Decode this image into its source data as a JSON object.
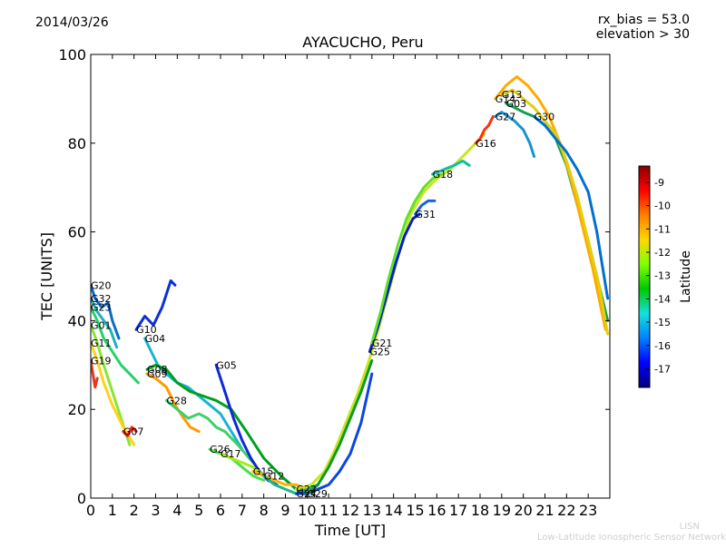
{
  "date": "2014/03/26",
  "rx_bias": "rx_bias = 53.0",
  "elevation": "elevation > 30",
  "watermark": {
    "line1": "LISN",
    "line2": "Low-Latitude Ionospheric Sensor Network"
  },
  "colorbar": {
    "label": "Latitude",
    "ticks": [
      "-9",
      "-10",
      "-11",
      "-12",
      "-13",
      "-14",
      "-15",
      "-16",
      "-17"
    ],
    "range": [
      -17.8,
      -8.3
    ],
    "colors": [
      "#00007f",
      "#0000ff",
      "#0080ff",
      "#15e0e0",
      "#00c800",
      "#7fff00",
      "#ffd700",
      "#ff8000",
      "#ff0000",
      "#8b0000"
    ]
  },
  "chart_data": {
    "type": "line",
    "title": "AYACUCHO, Peru",
    "xlabel": "Time [UT]",
    "ylabel": "TEC [UNITS]",
    "xlim": [
      0,
      24
    ],
    "ylim": [
      0,
      100
    ],
    "xticks": [
      "0",
      "1",
      "2",
      "3",
      "4",
      "5",
      "6",
      "7",
      "8",
      "9",
      "10",
      "11",
      "12",
      "13",
      "14",
      "15",
      "16",
      "17",
      "18",
      "19",
      "20",
      "21",
      "22",
      "23"
    ],
    "yticks": [
      "0",
      "20",
      "40",
      "60",
      "80",
      "100"
    ],
    "series": [
      {
        "name": "G20",
        "color": "#0a6bc9",
        "x": [
          0,
          0.2,
          0.5,
          0.8,
          1.0,
          1.3
        ],
        "y": [
          48,
          45,
          43,
          44,
          40,
          36
        ]
      },
      {
        "name": "G32",
        "color": "#1fb0c0",
        "x": [
          0,
          0.3,
          0.6,
          0.9,
          1.2
        ],
        "y": [
          45,
          42,
          40,
          38,
          34
        ]
      },
      {
        "name": "G23",
        "color": "#23d36a",
        "x": [
          0,
          0.3,
          0.6,
          1.0,
          1.4,
          1.8,
          2.2
        ],
        "y": [
          43,
          40,
          36,
          33,
          30,
          28,
          26
        ]
      },
      {
        "name": "G01",
        "color": "#88e633",
        "x": [
          0,
          0.3,
          0.6,
          1.0,
          1.4,
          1.8
        ],
        "y": [
          39,
          35,
          30,
          24,
          18,
          12
        ]
      },
      {
        "name": "G11",
        "color": "#ffd21a",
        "x": [
          0,
          0.3,
          0.6,
          1.0,
          1.5,
          2.0
        ],
        "y": [
          35,
          31,
          26,
          21,
          16,
          12
        ]
      },
      {
        "name": "G19",
        "color": "#e43820",
        "x": [
          0,
          0.1,
          0.2,
          0.3
        ],
        "y": [
          31,
          28,
          25,
          27
        ]
      },
      {
        "name": "G07",
        "color": "#ff2010",
        "x": [
          1.5,
          1.7,
          1.9,
          2.1
        ],
        "y": [
          15,
          14,
          16,
          15
        ]
      },
      {
        "name": "G04",
        "color": "#18b3d4",
        "x": [
          2.5,
          2.8,
          3.1,
          3.5,
          4.0,
          4.5,
          5.0,
          5.5,
          6.0,
          6.5,
          7.0
        ],
        "y": [
          36,
          33,
          30,
          28,
          26,
          25,
          23,
          21,
          19,
          15,
          11
        ]
      },
      {
        "name": "G10",
        "color": "#0b2fd8",
        "x": [
          2.1,
          2.5,
          2.9,
          3.3,
          3.7,
          3.9
        ],
        "y": [
          38,
          41,
          39,
          43,
          49,
          48
        ]
      },
      {
        "name": "G08",
        "color": "#00a020",
        "x": [
          2.6,
          3.0,
          3.5,
          4.0,
          4.6,
          5.2,
          5.8,
          6.5,
          7.2,
          8.0,
          8.8,
          9.5,
          10.0
        ],
        "y": [
          29,
          30,
          29,
          26,
          24,
          23,
          22,
          20,
          15,
          9,
          5,
          2,
          1
        ]
      },
      {
        "name": "G09",
        "color": "#ff9a00",
        "x": [
          2.6,
          3.0,
          3.5,
          3.9,
          4.3,
          4.6,
          5.0
        ],
        "y": [
          28,
          27,
          25,
          21,
          18,
          16,
          15
        ]
      },
      {
        "name": "G28",
        "color": "#3fcf6a",
        "x": [
          3.5,
          4.0,
          4.5,
          5.0,
          5.4,
          5.8,
          6.2,
          6.8,
          7.5
        ],
        "y": [
          22,
          20,
          18,
          19,
          18,
          16,
          15,
          12,
          8
        ]
      },
      {
        "name": "G05",
        "color": "#0d2ad6",
        "x": [
          5.8,
          6.2,
          6.6,
          7.0,
          7.4,
          7.8,
          8.2,
          8.6
        ],
        "y": [
          30,
          24,
          18,
          13,
          9,
          6,
          4,
          3
        ]
      },
      {
        "name": "G26",
        "color": "#4ae04a",
        "x": [
          5.5,
          6.0,
          6.5,
          7.0,
          7.5,
          8.0
        ],
        "y": [
          11,
          10,
          9,
          7,
          5,
          4
        ]
      },
      {
        "name": "G17",
        "color": "#a6ea1a",
        "x": [
          6.0,
          6.5,
          7.0,
          7.5,
          8.0,
          8.5
        ],
        "y": [
          10,
          9,
          8,
          7,
          5,
          4
        ]
      },
      {
        "name": "G15",
        "color": "#ffb000",
        "x": [
          7.5,
          8.0,
          8.5,
          9.0,
          9.5,
          10.0
        ],
        "y": [
          6,
          5,
          4,
          3,
          3,
          2
        ]
      },
      {
        "name": "G12",
        "color": "#1bb88a",
        "x": [
          8.0,
          8.5,
          9.0,
          9.5,
          10.0,
          10.5
        ],
        "y": [
          5,
          3,
          2,
          1,
          2,
          3
        ]
      },
      {
        "name": "G24",
        "color": "#0a46e0",
        "x": [
          9.5,
          10.0,
          10.5,
          11.0,
          11.5,
          12.0,
          12.5,
          13.0
        ],
        "y": [
          1,
          1,
          2,
          3,
          6,
          10,
          17,
          28
        ]
      },
      {
        "name": "G22",
        "color": "#c8e61f",
        "x": [
          9.5,
          10.2,
          10.8,
          11.3,
          11.8,
          12.3,
          12.8,
          13.3,
          13.8,
          14.3,
          14.8,
          15.4,
          16.0,
          16.6,
          17.2,
          17.8,
          18.2
        ],
        "y": [
          2,
          3,
          6,
          11,
          17,
          23,
          30,
          38,
          47,
          56,
          64,
          69,
          72,
          74,
          77,
          80,
          82
        ]
      },
      {
        "name": "G29",
        "color": "#0c9a28",
        "x": [
          10.0,
          10.5,
          11.0,
          11.5,
          12.0,
          12.5,
          13.0
        ],
        "y": [
          1,
          3,
          7,
          12,
          18,
          24,
          31
        ]
      },
      {
        "name": "G25",
        "color": "#0520c8",
        "x": [
          12.9,
          13.3,
          13.7,
          14.1,
          14.5,
          14.9,
          15.2
        ],
        "y": [
          33,
          39,
          46,
          53,
          59,
          63,
          64
        ]
      },
      {
        "name": "G21",
        "color": "#5fe02a",
        "x": [
          13.0,
          13.4,
          13.8,
          14.2,
          14.6,
          15.0,
          15.4,
          15.8,
          16.2
        ],
        "y": [
          35,
          42,
          50,
          57,
          63,
          67,
          70,
          72,
          73
        ]
      },
      {
        "name": "G31",
        "color": "#1a60e0",
        "x": [
          15.0,
          15.3,
          15.6,
          15.9
        ],
        "y": [
          64,
          66,
          67,
          67
        ]
      },
      {
        "name": "G18",
        "color": "#0fc0a0",
        "x": [
          15.8,
          16.3,
          16.8,
          17.2,
          17.5
        ],
        "y": [
          73,
          74,
          75,
          76,
          75
        ]
      },
      {
        "name": "G16",
        "color": "#ff3010",
        "x": [
          17.8,
          18.0,
          18.2,
          18.4,
          18.6
        ],
        "y": [
          80,
          81,
          83,
          84,
          86
        ]
      },
      {
        "name": "G27",
        "color": "#1496d0",
        "x": [
          18.7,
          19.0,
          19.3,
          19.6,
          20.0,
          20.3,
          20.5
        ],
        "y": [
          86,
          87,
          86,
          85,
          83,
          80,
          77
        ]
      },
      {
        "name": "G03",
        "color": "#12a050",
        "x": [
          19.2,
          19.6,
          20.0,
          20.5,
          21.0,
          21.5,
          22.0,
          22.5,
          23.0,
          23.5,
          23.9
        ],
        "y": [
          89,
          88,
          87,
          86,
          84,
          81,
          75,
          66,
          58,
          48,
          40
        ]
      },
      {
        "name": "G14",
        "color": "#ffaa00",
        "x": [
          18.7,
          19.2,
          19.7,
          20.2,
          20.7,
          21.2,
          21.7,
          22.2,
          22.7,
          23.2,
          23.8
        ],
        "y": [
          90,
          93,
          95,
          93,
          90,
          86,
          80,
          72,
          62,
          52,
          38
        ]
      },
      {
        "name": "G13",
        "color": "#e0d010",
        "x": [
          19.0,
          19.5,
          20.0,
          20.5,
          21.0,
          21.5,
          22.0,
          22.5,
          23.0,
          23.5,
          23.9
        ],
        "y": [
          91,
          92,
          90,
          88,
          85,
          82,
          76,
          68,
          58,
          48,
          37
        ]
      },
      {
        "name": "G30",
        "color": "#0070d0",
        "x": [
          20.5,
          21.0,
          21.5,
          22.0,
          22.5,
          23.0,
          23.4,
          23.9
        ],
        "y": [
          86,
          84,
          81,
          78,
          74,
          69,
          60,
          45
        ]
      }
    ]
  }
}
